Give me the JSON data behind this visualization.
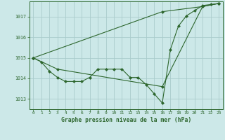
{
  "bg_color": "#cce8e8",
  "grid_color": "#aacccc",
  "line_color": "#2d662d",
  "title": "Graphe pression niveau de la mer (hPa)",
  "xlim": [
    -0.5,
    23.5
  ],
  "ylim": [
    1012.5,
    1017.75
  ],
  "yticks": [
    1013,
    1014,
    1015,
    1016,
    1017
  ],
  "xticks": [
    0,
    1,
    2,
    3,
    4,
    5,
    6,
    7,
    8,
    9,
    10,
    11,
    12,
    13,
    14,
    15,
    16,
    17,
    18,
    19,
    20,
    21,
    22,
    23
  ],
  "series1_x": [
    0,
    1,
    2,
    3,
    4,
    5,
    6,
    7,
    8,
    9,
    10,
    11,
    12,
    13,
    14,
    15,
    16,
    17,
    18,
    19,
    20,
    21,
    22,
    23
  ],
  "series1_y": [
    1015.0,
    1014.8,
    1014.35,
    1014.05,
    1013.85,
    1013.85,
    1013.85,
    1014.05,
    1014.45,
    1014.45,
    1014.45,
    1014.45,
    1014.05,
    1014.05,
    1013.7,
    1013.25,
    1012.8,
    1015.4,
    1016.55,
    1017.05,
    1017.3,
    1017.55,
    1017.6,
    1017.65
  ],
  "series2_x": [
    0,
    3,
    16,
    21,
    23
  ],
  "series2_y": [
    1015.0,
    1014.45,
    1013.6,
    1017.5,
    1017.65
  ],
  "series3_x": [
    0,
    16,
    21,
    23
  ],
  "series3_y": [
    1015.0,
    1017.25,
    1017.5,
    1017.65
  ]
}
